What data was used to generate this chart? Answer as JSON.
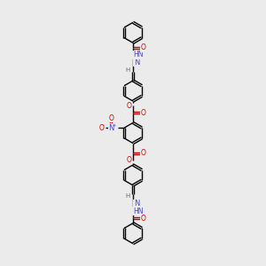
{
  "bg_color": "#ebebeb",
  "atom_colors": {
    "C": "#000000",
    "N": "#4444cc",
    "O": "#cc0000",
    "H": "#666666"
  },
  "bond_color": "#000000",
  "figsize": [
    3.0,
    3.0
  ],
  "dpi": 100,
  "lw": 1.0,
  "ring_r": 0.55,
  "fs": 5.5
}
